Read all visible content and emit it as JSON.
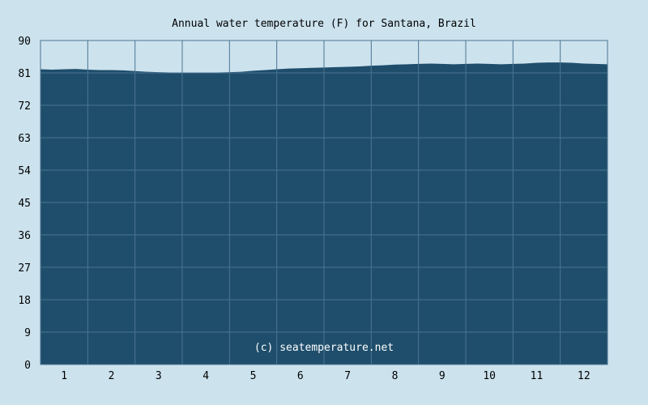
{
  "chart_data": {
    "type": "area",
    "title": "Annual water temperature (F) for Santana, Brazil",
    "watermark": "(c) seatemperature.net",
    "xlabel": "",
    "ylabel": "",
    "ylim": [
      0,
      90
    ],
    "yticks": [
      0,
      9,
      18,
      27,
      36,
      45,
      54,
      63,
      72,
      81,
      90
    ],
    "xlim": [
      0.5,
      12.5
    ],
    "xticks": [
      1,
      2,
      3,
      4,
      5,
      6,
      7,
      8,
      9,
      10,
      11,
      12
    ],
    "grid": true,
    "colors": {
      "background": "#cce3ee",
      "plot": "#1f4e6c",
      "grid": "#4b7490",
      "axis": "#4b7490"
    },
    "x": [
      0.5,
      0.75,
      1.0,
      1.25,
      1.5,
      1.75,
      2.0,
      2.25,
      2.5,
      2.75,
      3.0,
      3.25,
      3.5,
      3.75,
      4.0,
      4.25,
      4.5,
      4.75,
      5.0,
      5.25,
      5.5,
      5.75,
      6.0,
      6.25,
      6.5,
      6.75,
      7.0,
      7.25,
      7.5,
      7.75,
      8.0,
      8.25,
      8.5,
      8.75,
      9.0,
      9.25,
      9.5,
      9.75,
      10.0,
      10.25,
      10.5,
      10.75,
      11.0,
      11.25,
      11.5,
      11.75,
      12.0,
      12.25,
      12.5
    ],
    "values": [
      82.0,
      81.9,
      82.0,
      82.1,
      81.9,
      81.8,
      81.8,
      81.7,
      81.5,
      81.3,
      81.2,
      81.1,
      81.0,
      80.9,
      81.0,
      81.1,
      81.2,
      81.3,
      81.6,
      81.8,
      82.0,
      82.2,
      82.3,
      82.4,
      82.5,
      82.6,
      82.7,
      82.8,
      83.0,
      83.1,
      83.3,
      83.4,
      83.5,
      83.6,
      83.5,
      83.4,
      83.5,
      83.6,
      83.5,
      83.4,
      83.5,
      83.6,
      83.8,
      83.9,
      83.9,
      83.8,
      83.6,
      83.5,
      83.4
    ]
  }
}
